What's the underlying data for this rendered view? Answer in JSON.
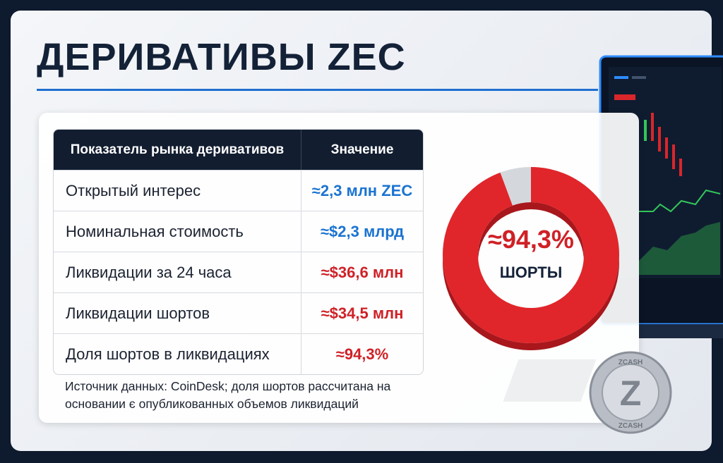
{
  "header": {
    "title": "ДЕРИВАТИВЫ ZEC"
  },
  "table": {
    "columns": [
      "Показатель рынка деривативов",
      "Значение"
    ],
    "rows": [
      [
        "Открытый интерес",
        "≈2,3 млн ZEC"
      ],
      [
        "Номинальная стоимость",
        "≈$2,3 млрд"
      ],
      [
        "Ликвидации за 24 часа",
        "≈$36,6 млн"
      ],
      [
        "Ликвидации шортов",
        "≈$34,5 млн"
      ],
      [
        "Доля шортов в ликвидациях",
        "≈94,3%"
      ]
    ]
  },
  "footnote": [
    "Источник данных: CoinDesk; доля шортов рассчитана на",
    "основании  є опубликованных объемов ликвидаций"
  ],
  "donut": {
    "value": 94.3,
    "label": "≈94,3%",
    "caption": "ШОРТЫ",
    "color": "#e0262b"
  },
  "coin": {
    "top": "ZCASH",
    "bottom": "ZCASH",
    "symbol": "Z"
  }
}
